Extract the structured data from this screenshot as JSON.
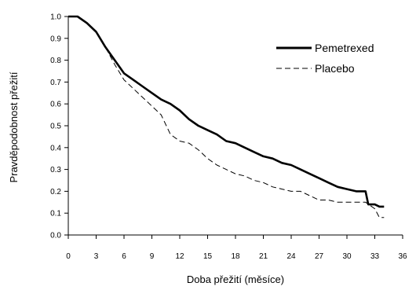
{
  "chart_data": {
    "type": "line",
    "title": "",
    "xlabel": "Doba přežití (měsíce)",
    "ylabel": "Pravděpodobnost přežití",
    "xlim": [
      0,
      36
    ],
    "ylim": [
      0.0,
      1.0
    ],
    "x_ticks": [
      0,
      3,
      6,
      9,
      12,
      15,
      18,
      21,
      24,
      27,
      30,
      33,
      36
    ],
    "x_tick_labels": [
      "0",
      "3",
      "6",
      "9",
      "12",
      "15",
      "18",
      "21",
      "24",
      "27",
      "30",
      "33",
      "36"
    ],
    "y_ticks": [
      0.0,
      0.1,
      0.2,
      0.3,
      0.4,
      0.5,
      0.6,
      0.7,
      0.8,
      0.9,
      1.0
    ],
    "y_tick_labels": [
      "0.0",
      "0.1",
      "0.2",
      "0.3",
      "0.4",
      "0.5",
      "0.6",
      "0.7",
      "0.8",
      "0.9",
      "1.0"
    ],
    "grid": false,
    "legend_position": "top-right",
    "series": [
      {
        "name": "Pemetrexed",
        "style": "solid",
        "color": "#000000",
        "points": [
          [
            0,
            1.0
          ],
          [
            1,
            1.0
          ],
          [
            2,
            0.97
          ],
          [
            3,
            0.93
          ],
          [
            4,
            0.86
          ],
          [
            5,
            0.8
          ],
          [
            6,
            0.74
          ],
          [
            7,
            0.71
          ],
          [
            8,
            0.68
          ],
          [
            9,
            0.65
          ],
          [
            10,
            0.62
          ],
          [
            11,
            0.6
          ],
          [
            12,
            0.57
          ],
          [
            13,
            0.53
          ],
          [
            14,
            0.5
          ],
          [
            15,
            0.48
          ],
          [
            16,
            0.46
          ],
          [
            17,
            0.43
          ],
          [
            18,
            0.42
          ],
          [
            19,
            0.4
          ],
          [
            20,
            0.38
          ],
          [
            21,
            0.36
          ],
          [
            22,
            0.35
          ],
          [
            23,
            0.33
          ],
          [
            24,
            0.32
          ],
          [
            25,
            0.3
          ],
          [
            26,
            0.28
          ],
          [
            27,
            0.26
          ],
          [
            28,
            0.24
          ],
          [
            29,
            0.22
          ],
          [
            30,
            0.21
          ],
          [
            31,
            0.2
          ],
          [
            32,
            0.2
          ],
          [
            32.3,
            0.14
          ],
          [
            33,
            0.14
          ],
          [
            33.5,
            0.13
          ],
          [
            34,
            0.13
          ]
        ]
      },
      {
        "name": "Placebo",
        "style": "dashed",
        "color": "#000000",
        "points": [
          [
            0,
            1.0
          ],
          [
            1,
            1.0
          ],
          [
            2,
            0.97
          ],
          [
            3,
            0.93
          ],
          [
            4,
            0.86
          ],
          [
            5,
            0.78
          ],
          [
            6,
            0.71
          ],
          [
            7,
            0.67
          ],
          [
            8,
            0.63
          ],
          [
            9,
            0.59
          ],
          [
            10,
            0.55
          ],
          [
            11,
            0.46
          ],
          [
            12,
            0.43
          ],
          [
            13,
            0.42
          ],
          [
            14,
            0.39
          ],
          [
            15,
            0.35
          ],
          [
            16,
            0.32
          ],
          [
            17,
            0.3
          ],
          [
            18,
            0.28
          ],
          [
            19,
            0.27
          ],
          [
            20,
            0.25
          ],
          [
            21,
            0.24
          ],
          [
            22,
            0.22
          ],
          [
            23,
            0.21
          ],
          [
            24,
            0.2
          ],
          [
            25,
            0.2
          ],
          [
            26,
            0.18
          ],
          [
            27,
            0.16
          ],
          [
            28,
            0.16
          ],
          [
            29,
            0.15
          ],
          [
            30,
            0.15
          ],
          [
            31,
            0.15
          ],
          [
            32,
            0.15
          ],
          [
            33,
            0.12
          ],
          [
            33.5,
            0.08
          ],
          [
            34,
            0.08
          ]
        ]
      }
    ]
  }
}
